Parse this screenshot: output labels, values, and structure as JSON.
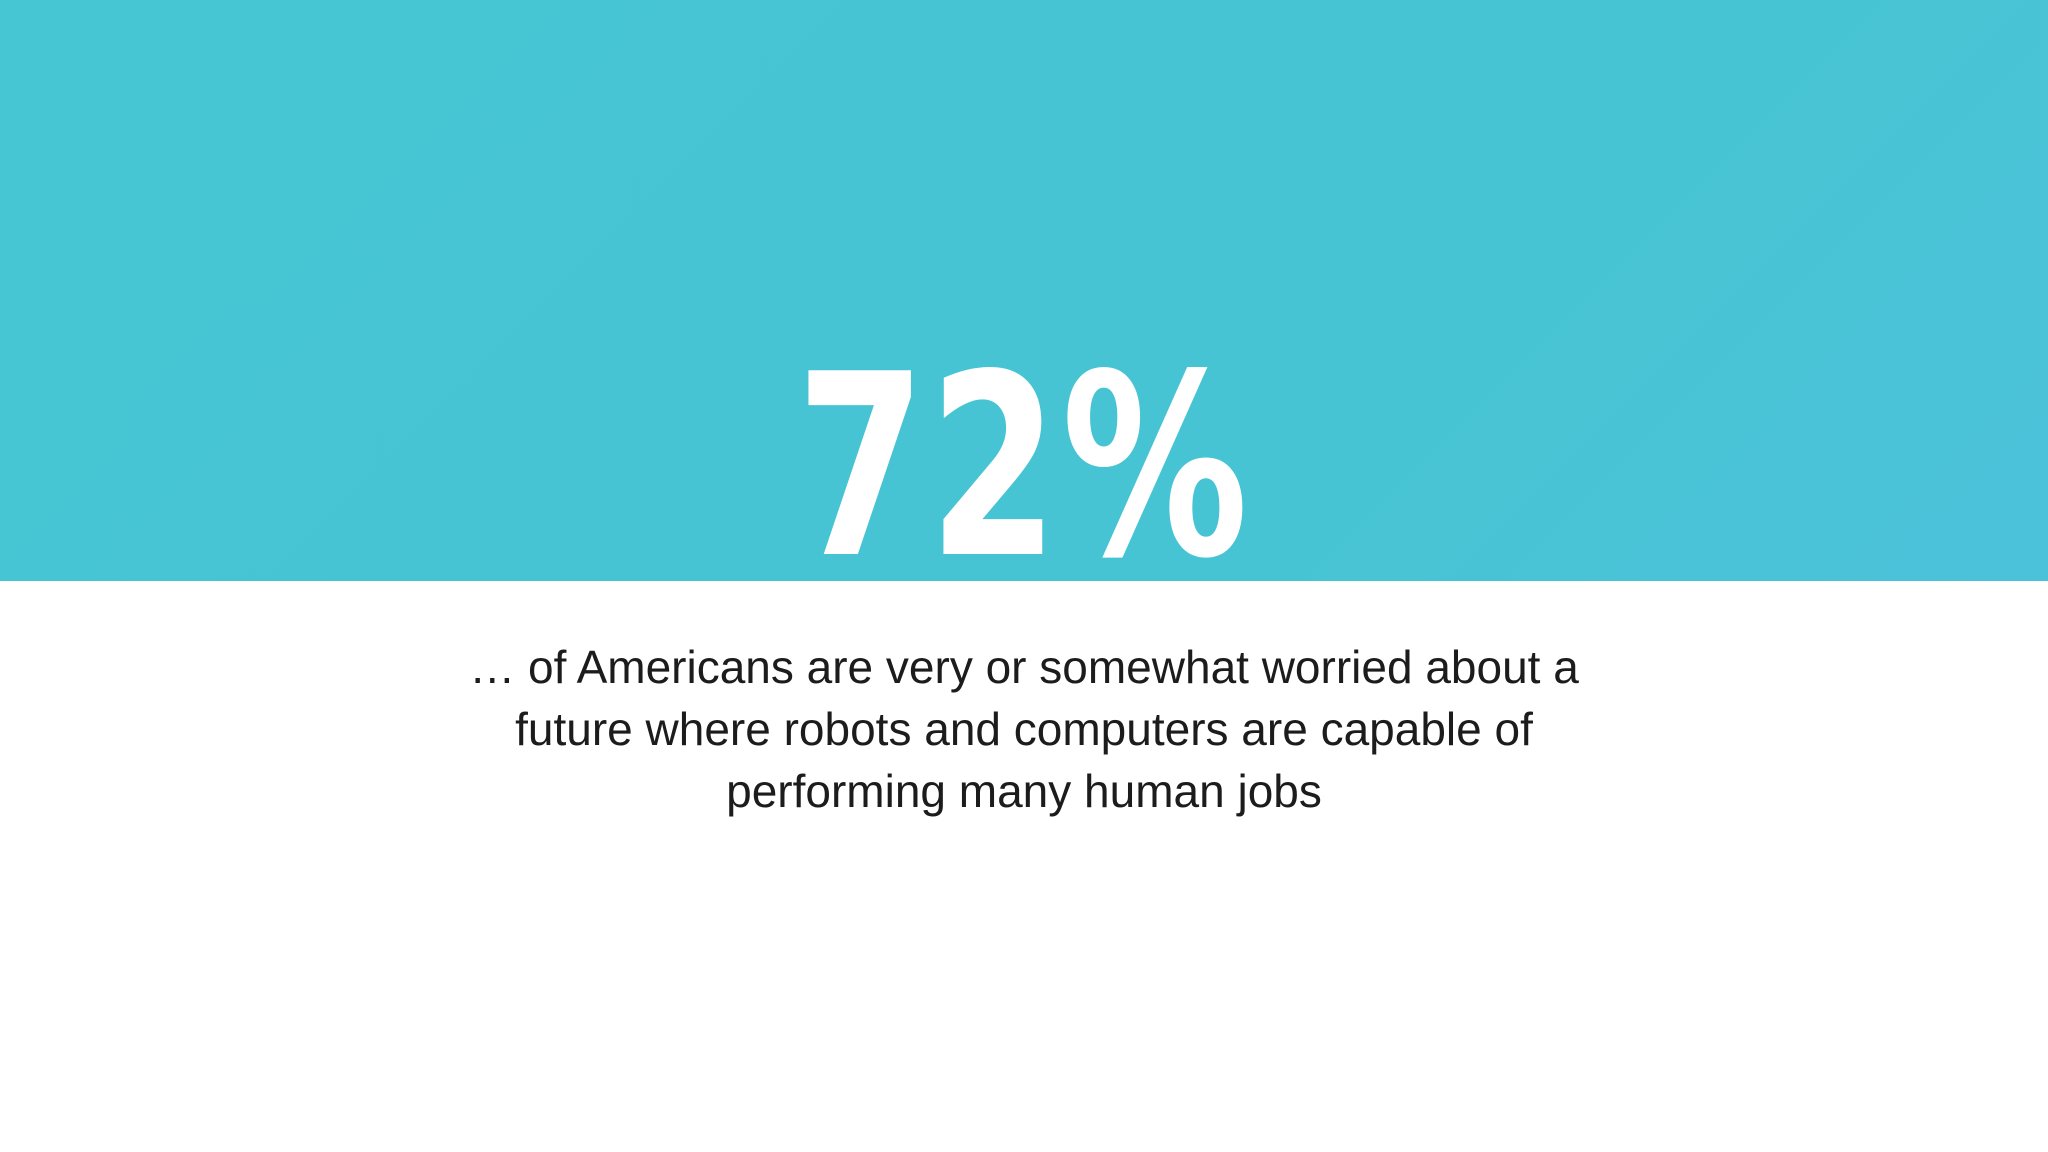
{
  "slide": {
    "statistic": "72%",
    "caption_lines": [
      "… of Americans are very or somewhat worried about a",
      "future where robots and computers are capable of",
      "performing many human jobs"
    ],
    "colors": {
      "band": "#47c4d4",
      "statistic_text": "#ffffff",
      "caption_text": "#1c1c1c",
      "background": "#ffffff"
    }
  }
}
